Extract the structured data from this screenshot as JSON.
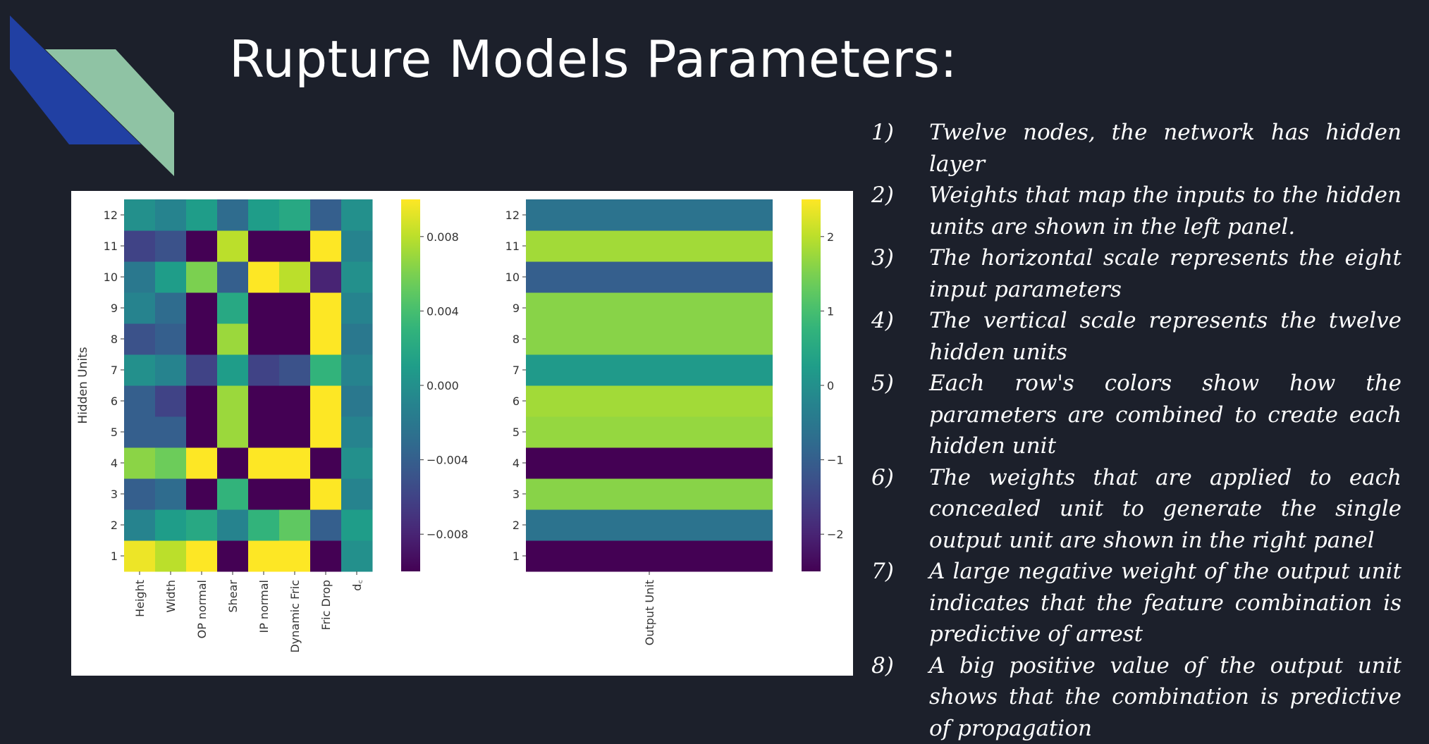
{
  "slide": {
    "title": "Rupture Models Parameters:",
    "accent_colors": [
      "#2140a3",
      "#8fc3a4"
    ]
  },
  "notes": [
    {
      "num": "1)",
      "text": "Twelve nodes, the network has hidden layer"
    },
    {
      "num": "2)",
      "text": "Weights that map the inputs to the hidden units are shown in the left panel."
    },
    {
      "num": "3)",
      "text": "The horizontal scale represents the eight input parameters"
    },
    {
      "num": "4)",
      "text": "The vertical scale represents the twelve hidden units"
    },
    {
      "num": "5)",
      "text": "Each row's colors show how the parameters are combined to create each hidden unit"
    },
    {
      "num": "6)",
      "text": "The weights that are applied to each concealed unit to generate the single output unit are shown in the right panel"
    },
    {
      "num": "7)",
      "text": "A large negative weight of the output unit indicates that the feature combination is predictive of arrest"
    },
    {
      "num": "8)",
      "text": "A big positive value of the output unit shows that the combination is predictive of propagation"
    }
  ],
  "chart_data": [
    {
      "type": "heatmap",
      "ylabel": "Hidden Units",
      "x_labels": [
        "Height",
        "Width",
        "OP normal",
        "Shear",
        "IP normal",
        "Dynamic Fric",
        "Fric Drop",
        "d_c"
      ],
      "y_labels": [
        "1",
        "2",
        "3",
        "4",
        "5",
        "6",
        "7",
        "8",
        "9",
        "10",
        "11",
        "12"
      ],
      "colormap": "viridis",
      "clim": [
        -0.01,
        0.01
      ],
      "colorbar_ticks": [
        "0.008",
        "0.004",
        "0.000",
        "−0.004",
        "−0.008"
      ],
      "colorbar_tick_values": [
        0.008,
        0.004,
        0.0,
        -0.004,
        -0.008
      ],
      "values": [
        [
          0.0095,
          0.008,
          0.01,
          -0.01,
          0.01,
          0.01,
          -0.01,
          0.0
        ],
        [
          -0.001,
          0.001,
          0.002,
          -0.001,
          0.003,
          0.005,
          -0.004,
          0.001
        ],
        [
          -0.004,
          -0.003,
          -0.01,
          0.003,
          -0.01,
          -0.01,
          0.01,
          -0.001
        ],
        [
          0.0065,
          0.0055,
          0.01,
          -0.01,
          0.01,
          0.01,
          -0.01,
          0.0
        ],
        [
          -0.004,
          -0.004,
          -0.01,
          0.007,
          -0.01,
          -0.01,
          0.01,
          -0.001
        ],
        [
          -0.004,
          -0.006,
          -0.01,
          0.007,
          -0.01,
          -0.01,
          0.01,
          -0.002
        ],
        [
          0.0,
          -0.001,
          -0.006,
          0.001,
          -0.006,
          -0.005,
          0.003,
          -0.001
        ],
        [
          -0.005,
          -0.004,
          -0.01,
          0.007,
          -0.01,
          -0.01,
          0.01,
          -0.002
        ],
        [
          -0.001,
          -0.003,
          -0.01,
          0.002,
          -0.01,
          -0.01,
          0.01,
          -0.001
        ],
        [
          -0.002,
          0.001,
          0.006,
          -0.004,
          0.01,
          0.008,
          -0.008,
          0.0
        ],
        [
          -0.006,
          -0.005,
          -0.01,
          0.008,
          -0.01,
          -0.01,
          0.01,
          -0.001
        ],
        [
          0.0,
          -0.001,
          0.001,
          -0.003,
          0.001,
          0.002,
          -0.004,
          0.0
        ]
      ]
    },
    {
      "type": "heatmap",
      "x_labels": [
        "Output Unit"
      ],
      "y_labels": [
        "1",
        "2",
        "3",
        "4",
        "5",
        "6",
        "7",
        "8",
        "9",
        "10",
        "11",
        "12"
      ],
      "colormap": "viridis",
      "clim": [
        -2.5,
        2.5
      ],
      "colorbar_ticks": [
        "2",
        "1",
        "0",
        "−1",
        "−2"
      ],
      "colorbar_tick_values": [
        2,
        1,
        0,
        -1,
        -2
      ],
      "values": [
        -2.5,
        -0.6,
        1.6,
        -2.5,
        1.7,
        1.8,
        0.2,
        1.6,
        1.6,
        -1.0,
        1.8,
        -0.6
      ]
    }
  ]
}
